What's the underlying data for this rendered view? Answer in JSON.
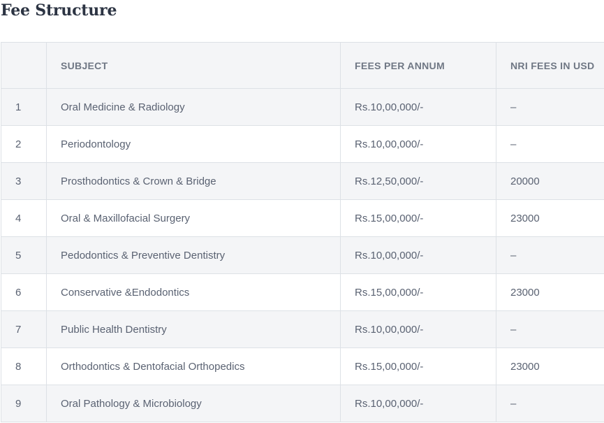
{
  "page": {
    "title": "Fee Structure"
  },
  "table": {
    "headers": {
      "index": "",
      "subject": "SUBJECT",
      "fees": "FEES PER ANNUM",
      "nri": "NRI FEES IN USD"
    },
    "rows": [
      {
        "index": "1",
        "subject": "Oral Medicine & Radiology",
        "fees": "Rs.10,00,000/-",
        "nri": "–"
      },
      {
        "index": "2",
        "subject": "Periodontology",
        "fees": "Rs.10,00,000/-",
        "nri": "–"
      },
      {
        "index": "3",
        "subject": "Prosthodontics & Crown & Bridge",
        "fees": "Rs.12,50,000/-",
        "nri": "20000"
      },
      {
        "index": "4",
        "subject": "Oral & Maxillofacial Surgery",
        "fees": "Rs.15,00,000/-",
        "nri": "23000"
      },
      {
        "index": "5",
        "subject": "Pedodontics & Preventive Dentistry",
        "fees": "Rs.10,00,000/-",
        "nri": "–"
      },
      {
        "index": "6",
        "subject": "Conservative &Endodontics",
        "fees": "Rs.15,00,000/-",
        "nri": "23000"
      },
      {
        "index": "7",
        "subject": "Public Health Dentistry",
        "fees": "Rs.10,00,000/-",
        "nri": "–"
      },
      {
        "index": "8",
        "subject": "Orthodontics & Dentofacial Orthopedics",
        "fees": "Rs.15,00,000/-",
        "nri": "23000"
      },
      {
        "index": "9",
        "subject": "Oral Pathology & Microbiology",
        "fees": "Rs.10,00,000/-",
        "nri": "–"
      }
    ]
  }
}
